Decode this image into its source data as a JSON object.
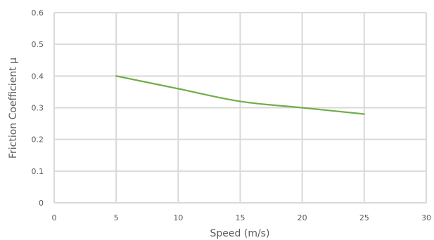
{
  "chart_data": {
    "type": "line",
    "title": "",
    "xlabel": "Speed (m/s)",
    "ylabel": "Friction Coefficient μ",
    "xlim": [
      0,
      30
    ],
    "ylim": [
      0,
      0.6
    ],
    "xticks": [
      "0",
      "5",
      "10",
      "15",
      "20",
      "25",
      "30"
    ],
    "yticks": [
      "0",
      "0.1",
      "0.2",
      "0.3",
      "0.4",
      "0.5",
      "0.6"
    ],
    "grid": true,
    "series": [
      {
        "color": "#70ad47",
        "x": [
          5,
          10,
          15,
          20,
          25
        ],
        "y": [
          0.4,
          0.36,
          0.32,
          0.3,
          0.28
        ]
      }
    ]
  }
}
